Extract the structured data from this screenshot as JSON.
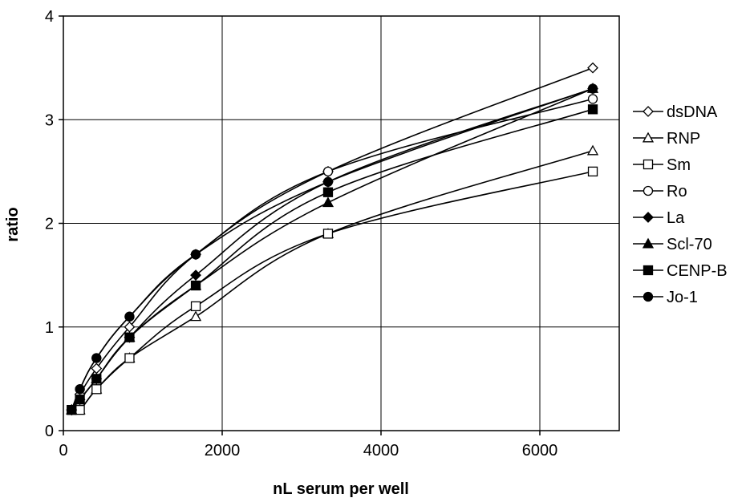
{
  "chart_data": {
    "type": "line",
    "title": "",
    "xlabel": "nL serum per well",
    "ylabel": "ratio",
    "xlim": [
      0,
      7000
    ],
    "ylim": [
      0,
      4
    ],
    "xticks": [
      0,
      2000,
      4000,
      6000
    ],
    "xtick_labels": [
      "0",
      "2000",
      "4000",
      "6000"
    ],
    "yticks": [
      0,
      1,
      2,
      3,
      4
    ],
    "ytick_labels": [
      "0",
      "1",
      "2",
      "3",
      "4"
    ],
    "grid": true,
    "legend_position": "right",
    "x": [
      104,
      208,
      417,
      833,
      1667,
      3333,
      6667
    ],
    "series": [
      {
        "name": "dsDNA",
        "marker": "diamond-open",
        "values": [
          0.2,
          0.35,
          0.6,
          1.0,
          1.7,
          2.5,
          3.5
        ]
      },
      {
        "name": "RNP",
        "marker": "triangle-open",
        "values": [
          0.2,
          0.2,
          0.4,
          0.7,
          1.1,
          1.9,
          2.7
        ]
      },
      {
        "name": "Sm",
        "marker": "square-open",
        "values": [
          0.2,
          0.2,
          0.4,
          0.7,
          1.2,
          1.9,
          2.5
        ]
      },
      {
        "name": "Ro",
        "marker": "circle-open",
        "values": [
          0.2,
          0.4,
          0.7,
          1.1,
          1.7,
          2.5,
          3.2
        ]
      },
      {
        "name": "La",
        "marker": "diamond-filled",
        "values": [
          0.2,
          0.3,
          0.5,
          0.9,
          1.5,
          2.4,
          3.3
        ]
      },
      {
        "name": "Scl-70",
        "marker": "triangle-filled",
        "values": [
          0.2,
          0.3,
          0.5,
          0.9,
          1.4,
          2.2,
          3.3
        ]
      },
      {
        "name": "CENP-B",
        "marker": "square-filled",
        "values": [
          0.2,
          0.3,
          0.5,
          0.9,
          1.4,
          2.3,
          3.1
        ]
      },
      {
        "name": "Jo-1",
        "marker": "circle-filled",
        "values": [
          0.2,
          0.4,
          0.7,
          1.1,
          1.7,
          2.4,
          3.3
        ]
      }
    ],
    "colors": {
      "line": "#000000",
      "grid": "#000000",
      "background": "#ffffff"
    }
  }
}
